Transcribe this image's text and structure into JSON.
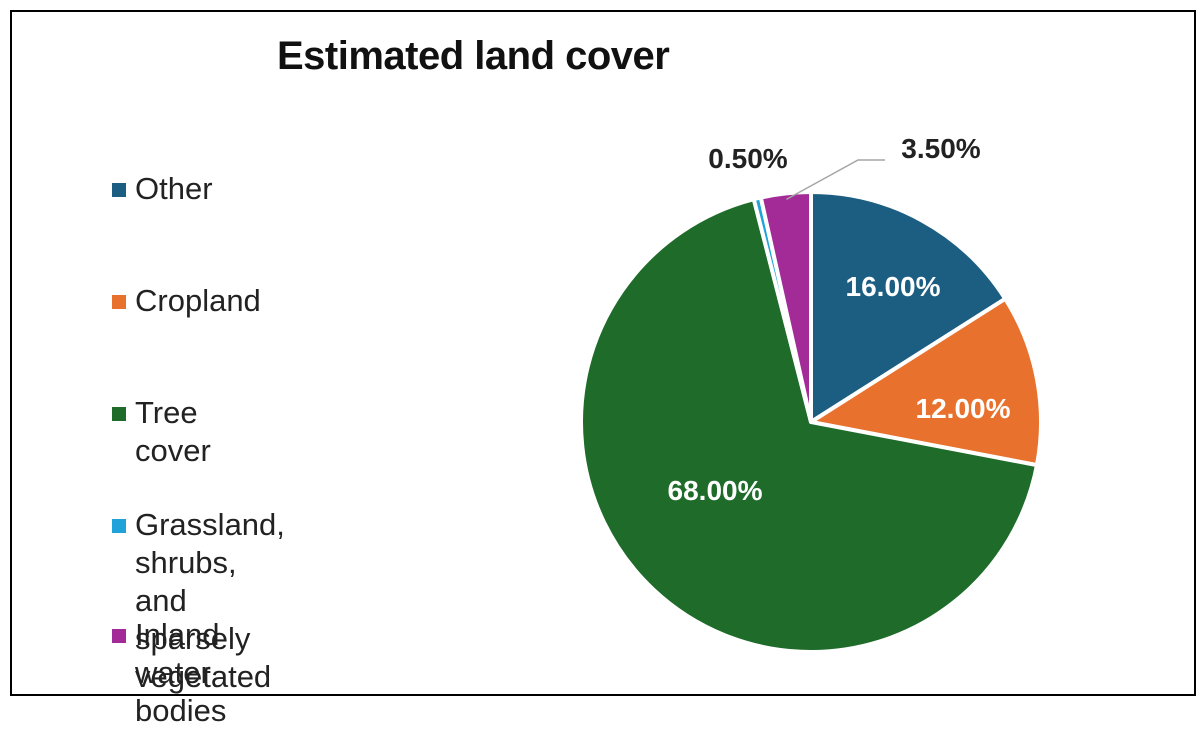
{
  "chart_data": {
    "type": "pie",
    "title": "Estimated land cover",
    "legend_position": "left",
    "slices": [
      {
        "name": "Other",
        "value": 16.0,
        "label": "16.00%",
        "color": "#1b5e82"
      },
      {
        "name": "Cropland",
        "value": 12.0,
        "label": "12.00%",
        "color": "#e8722d"
      },
      {
        "name": "Tree cover",
        "value": 68.0,
        "label": "68.00%",
        "color": "#1e6b2a"
      },
      {
        "name": "Grassland, shrubs, and\nsparsely vegetated",
        "value": 0.5,
        "label": "0.50%",
        "color": "#1fa3d8"
      },
      {
        "name": "Inland water bodies",
        "value": 3.5,
        "label": "3.50%",
        "color": "#a32b98"
      }
    ]
  }
}
